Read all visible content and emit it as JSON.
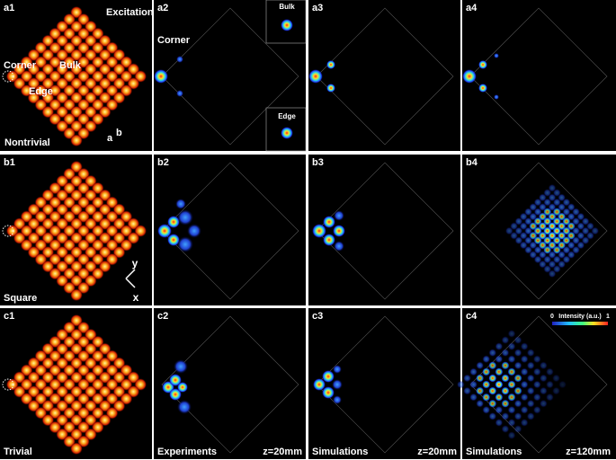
{
  "panels": [
    {
      "label": "a1",
      "notes": [
        "Excitation",
        "Corner",
        "Bulk",
        "Edge",
        "a",
        "b",
        "Nontrivial"
      ]
    },
    {
      "label": "a2",
      "notes": [
        "Corner",
        "Bulk",
        "Edge"
      ]
    },
    {
      "label": "a3",
      "notes": []
    },
    {
      "label": "a4",
      "notes": []
    },
    {
      "label": "b1",
      "notes": [
        "Square",
        "y",
        "x"
      ]
    },
    {
      "label": "b2",
      "notes": []
    },
    {
      "label": "b3",
      "notes": []
    },
    {
      "label": "b4",
      "notes": []
    },
    {
      "label": "c1",
      "notes": [
        "Trivial"
      ]
    },
    {
      "label": "c2",
      "notes": [
        "Experiments",
        "z=20mm"
      ]
    },
    {
      "label": "c3",
      "notes": [
        "Simulations",
        "z=20mm"
      ]
    },
    {
      "label": "c4",
      "notes": [
        "Simulations",
        "z=120mm",
        "0",
        "Intensity (a.u.)",
        "1"
      ]
    }
  ]
}
